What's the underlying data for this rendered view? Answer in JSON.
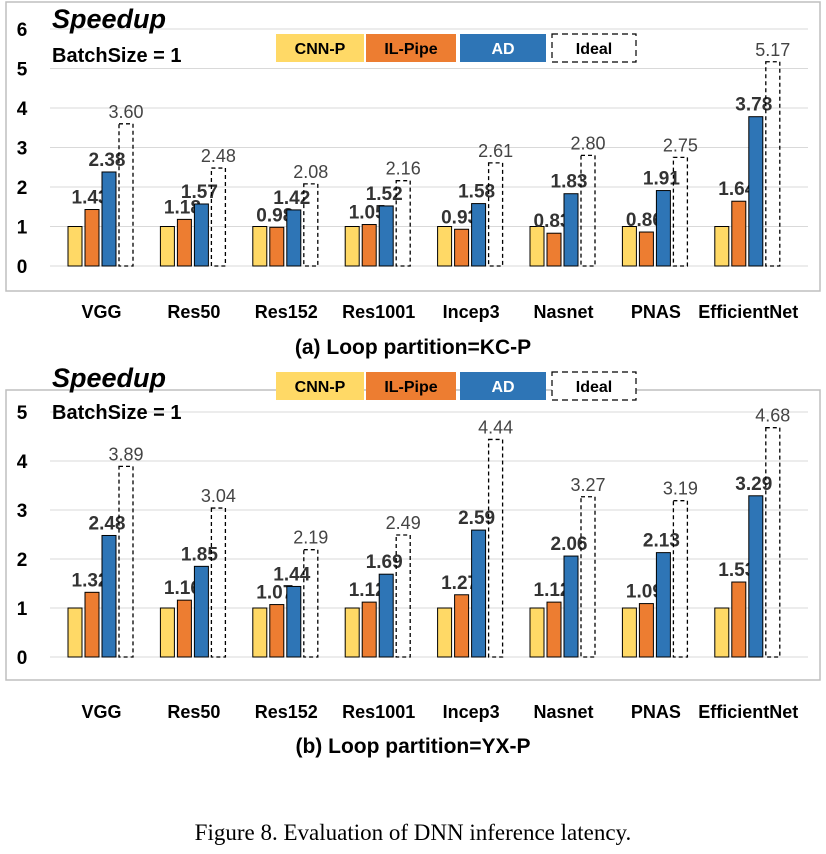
{
  "caption": "Figure 8.   Evaluation of DNN inference latency.",
  "colors": {
    "cnnp": "#FFD966",
    "ilpipe": "#ED7D31",
    "ad": "#2E75B6",
    "grid": "#D9D9D9",
    "frame": "#BFBFBF"
  },
  "chart_data": [
    {
      "type": "bar",
      "title": "Speedup",
      "subtitle": "BatchSize = 1",
      "xlabel": "(a) Loop partition=KC-P",
      "ylabel": "",
      "ylim": [
        0,
        6
      ],
      "yticks": [
        "0",
        "1",
        "2",
        "3",
        "4",
        "5",
        "6"
      ],
      "grid": true,
      "legend_position": "top",
      "categories": [
        "VGG",
        "Res50",
        "Res152",
        "Res1001",
        "Incep3",
        "Nasnet",
        "PNAS",
        "EfficientNet"
      ],
      "series": [
        {
          "name": "CNN-P",
          "values": [
            1,
            1,
            1,
            1,
            1,
            1,
            1,
            1
          ],
          "labels": [
            "",
            "",
            "",
            "",
            "",
            "",
            "",
            ""
          ]
        },
        {
          "name": "IL-Pipe",
          "values": [
            1.43,
            1.18,
            0.98,
            1.05,
            0.93,
            0.83,
            0.86,
            1.64
          ],
          "labels": [
            "1.43",
            "1.18",
            "0.98",
            "1.05",
            "0.93",
            "0.83",
            "0.86",
            "1.64"
          ]
        },
        {
          "name": "AD",
          "values": [
            2.38,
            1.57,
            1.42,
            1.52,
            1.58,
            1.83,
            1.91,
            3.78
          ],
          "labels": [
            "2.38",
            "1.57",
            "1.42",
            "1.52",
            "1.58",
            "1.83",
            "1.91",
            "3.78"
          ]
        },
        {
          "name": "Ideal",
          "values": [
            3.6,
            2.48,
            2.08,
            2.16,
            2.61,
            2.8,
            2.75,
            5.17
          ],
          "labels": [
            "3.60",
            "2.48",
            "2.08",
            "2.16",
            "2.61",
            "2.80",
            "2.75",
            "5.17"
          ]
        }
      ]
    },
    {
      "type": "bar",
      "title": "Speedup",
      "subtitle": "BatchSize = 1",
      "xlabel": "(b) Loop partition=YX-P",
      "ylabel": "",
      "ylim": [
        0,
        5
      ],
      "yticks": [
        "0",
        "1",
        "2",
        "3",
        "4",
        "5"
      ],
      "grid": true,
      "legend_position": "top",
      "categories": [
        "VGG",
        "Res50",
        "Res152",
        "Res1001",
        "Incep3",
        "Nasnet",
        "PNAS",
        "EfficientNet"
      ],
      "series": [
        {
          "name": "CNN-P",
          "values": [
            1,
            1,
            1,
            1,
            1,
            1,
            1,
            1
          ],
          "labels": [
            "",
            "",
            "",
            "",
            "",
            "",
            "",
            ""
          ]
        },
        {
          "name": "IL-Pipe",
          "values": [
            1.32,
            1.16,
            1.07,
            1.12,
            1.27,
            1.12,
            1.09,
            1.53
          ],
          "labels": [
            "1.32",
            "1.16",
            "1.07",
            "1.12",
            "1.27",
            "1.12",
            "1.09",
            "1.53"
          ]
        },
        {
          "name": "AD",
          "values": [
            2.48,
            1.85,
            1.44,
            1.69,
            2.59,
            2.06,
            2.13,
            3.29
          ],
          "labels": [
            "2.48",
            "1.85",
            "1.44",
            "1.69",
            "2.59",
            "2.06",
            "2.13",
            "3.29"
          ]
        },
        {
          "name": "Ideal",
          "values": [
            3.89,
            3.04,
            2.19,
            2.49,
            4.44,
            3.27,
            3.19,
            4.68
          ],
          "labels": [
            "3.89",
            "3.04",
            "2.19",
            "2.49",
            "4.44",
            "3.27",
            "3.19",
            "4.68"
          ]
        }
      ]
    }
  ]
}
